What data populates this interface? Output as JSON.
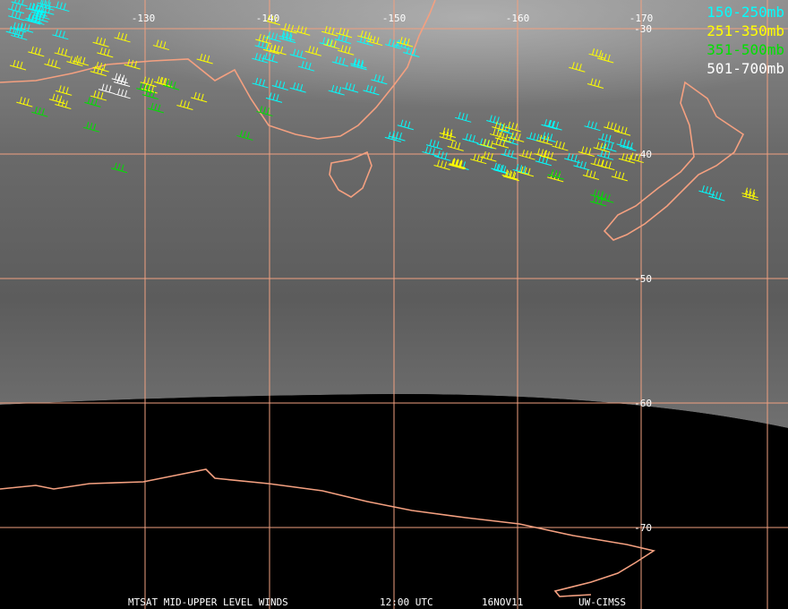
{
  "grid": {
    "longitude_labels": [
      "-130",
      "-140",
      "-150",
      "-160",
      "-170"
    ],
    "latitude_labels": [
      "-30",
      "-40",
      "-50",
      "-60",
      "-70"
    ]
  },
  "legend": [
    {
      "label": "150-250mb",
      "color": "#00ffff"
    },
    {
      "label": "251-350mb",
      "color": "#ffff00"
    },
    {
      "label": "351-500mb",
      "color": "#00e000"
    },
    {
      "label": "501-700mb",
      "color": "#ffffff"
    }
  ],
  "footer": {
    "product": "MTSAT MID-UPPER LEVEL WINDS",
    "time": "12:00 UTC",
    "date": "16NOV11",
    "source": "UW-CIMSS"
  }
}
